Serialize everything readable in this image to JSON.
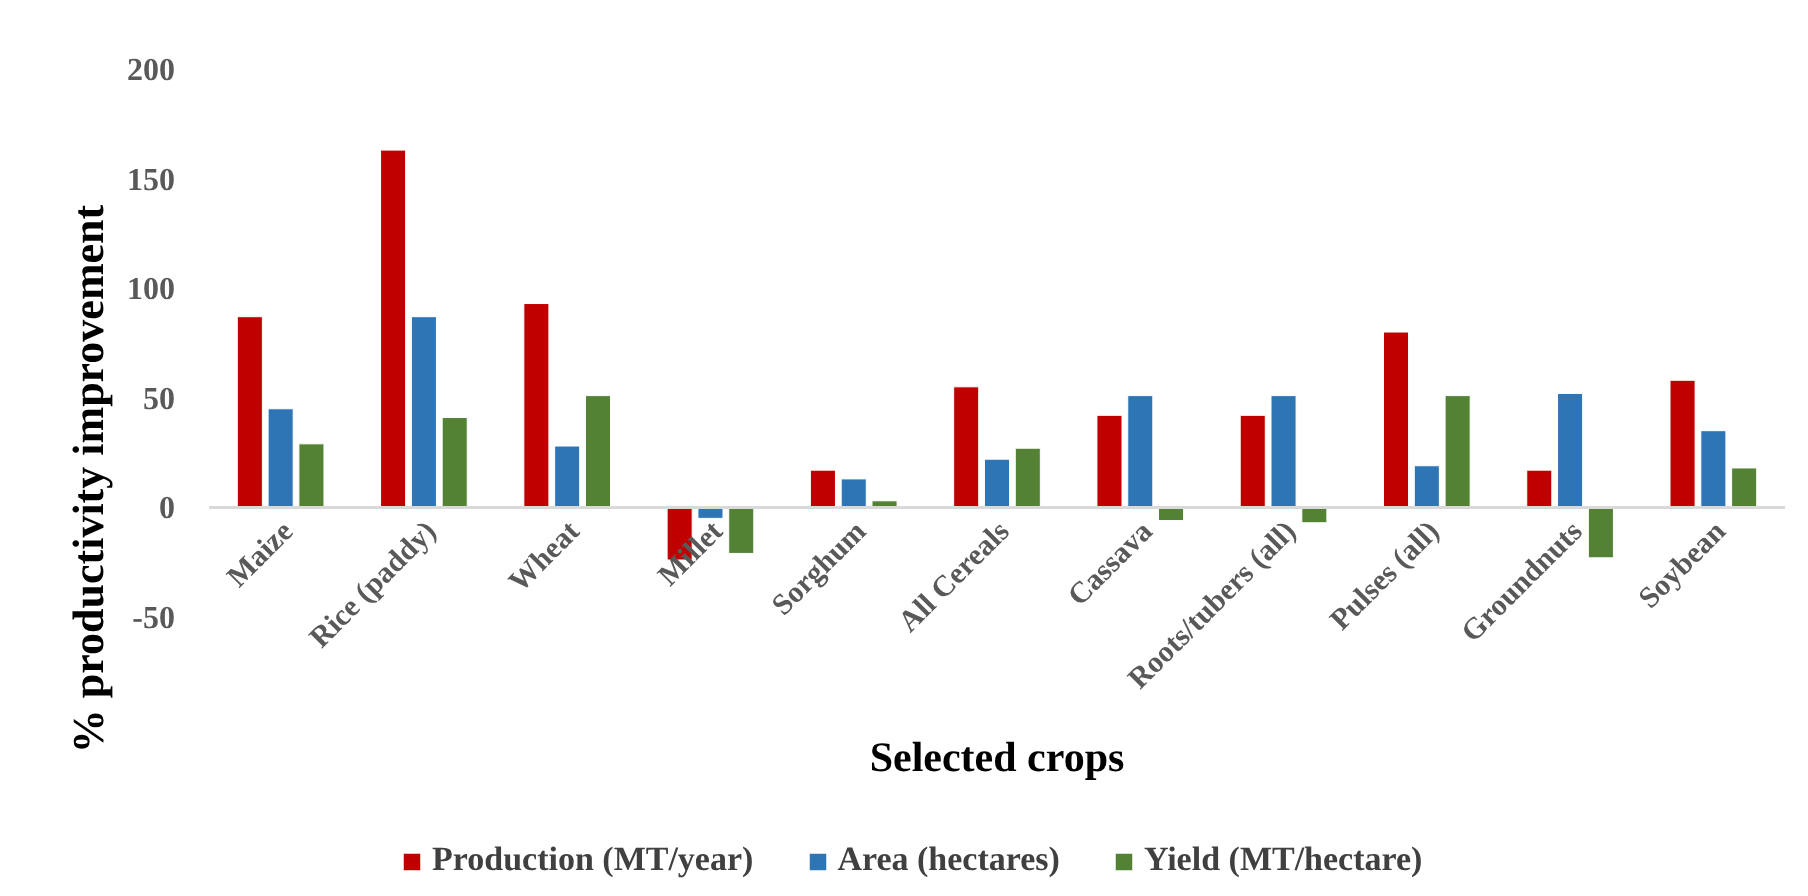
{
  "chart_data": {
    "type": "bar",
    "xlabel": "Selected crops",
    "ylabel": "% productivity improvement",
    "categories": [
      "Maize",
      "Rice (paddy)",
      "Wheat",
      "Millet",
      "Sorghum",
      "All Cereals",
      "Cassava",
      "Roots/tubers (all)",
      "Pulses (all)",
      "Groundnuts",
      "Soybean"
    ],
    "series": [
      {
        "name": "Production (MT/year)",
        "color": "#c00000",
        "values": [
          87,
          163,
          93,
          -24,
          17,
          55,
          42,
          42,
          80,
          17,
          58
        ]
      },
      {
        "name": "Area (hectares)",
        "color": "#2e75b6",
        "values": [
          45,
          87,
          28,
          -5,
          13,
          22,
          51,
          51,
          19,
          52,
          35
        ]
      },
      {
        "name": "Yield (MT/hectare)",
        "color": "#548235",
        "values": [
          29,
          41,
          51,
          -21,
          3,
          27,
          -6,
          -7,
          51,
          -23,
          18
        ]
      }
    ],
    "ylim": [
      -50,
      200
    ],
    "yticks": [
      -50,
      0,
      50,
      100,
      150,
      200
    ],
    "grid": false,
    "legend": "bottom"
  }
}
